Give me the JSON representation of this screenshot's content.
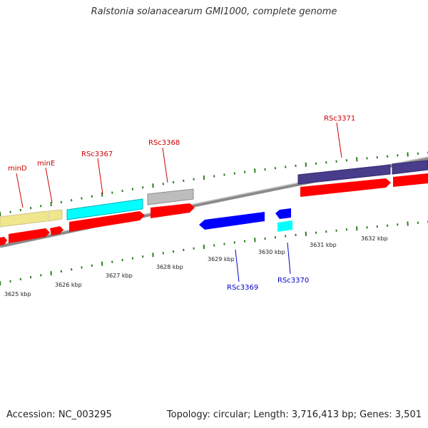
{
  "title": "Ralstonia solanacearum GMI1000, complete genome",
  "footer": {
    "accession": "Accession: NC_003295",
    "summary": "Topology: circular; Length: 3,716,413 bp; Genes: 3,501"
  },
  "colors": {
    "backbone": "#8a8a8a",
    "tick": "#2e7d22",
    "label_top": "#cc0000",
    "label_bottom": "#0000cc",
    "cds_red": "#ff0000",
    "khaki": "#f0e68c",
    "cyan": "#00ffff",
    "gray": "#bdbdbd",
    "dark_slate": "#483d8b",
    "blue": "#0000ff"
  },
  "scale_labels": [
    "3625 kbp",
    "3626 kbp",
    "3627 kbp",
    "3628 kbp",
    "3629 kbp",
    "3630 kbp",
    "3631 kbp",
    "3632 kbp"
  ],
  "gene_labels": {
    "top": [
      "minD",
      "minE",
      "RSc3367",
      "RSc3368",
      "RSc3371"
    ],
    "bottom": [
      "RSc3369",
      "RSc3370"
    ]
  }
}
